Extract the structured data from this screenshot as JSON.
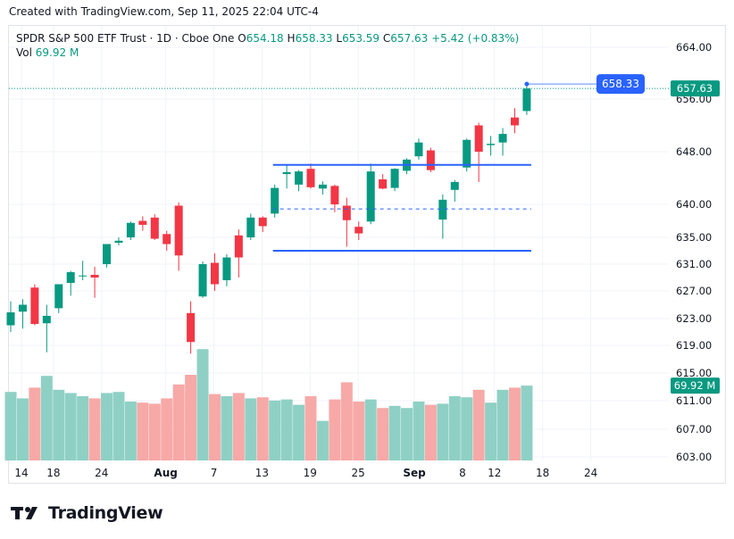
{
  "header": {
    "created_text": "Created with TradingView.com, Sep 11, 2025 22:04 UTC-4"
  },
  "legend": {
    "symbol": "SPDR S&P 500 ETF Trust · 1D · Cboe One",
    "o_label": "O",
    "o_value": "654.18",
    "h_label": "H",
    "h_value": "658.33",
    "l_label": "L",
    "l_value": "653.59",
    "c_label": "C",
    "c_value": "657.63",
    "change": "+5.42 (+0.83%)",
    "vol_label": "Vol",
    "vol_value": "69.92 M"
  },
  "badges": {
    "price_line_label": "658.33",
    "last_price_label": "657.63",
    "volume_label": "69.92 M"
  },
  "colors": {
    "up": "#089981",
    "down": "#f23645",
    "up_volume": "#8fd0c5",
    "down_volume": "#f7a9a7",
    "drawing_blue": "#2962ff"
  },
  "logo": {
    "text": "TradingView",
    "icon": "tradingview-logo-icon"
  },
  "chart_data": {
    "type": "candlestick",
    "y_ticks": [
      "664.00",
      "656.00",
      "648.00",
      "640.00",
      "635.00",
      "631.00",
      "627.00",
      "623.00",
      "619.00",
      "615.00",
      "611.00",
      "607.00",
      "603.00"
    ],
    "x_ticks": [
      {
        "label": "14",
        "day": 14
      },
      {
        "label": "18",
        "day": 18
      },
      {
        "label": "24",
        "day": 24
      },
      {
        "label": "Aug",
        "day": 32
      },
      {
        "label": "7",
        "day": 38
      },
      {
        "label": "13",
        "day": 44
      },
      {
        "label": "19",
        "day": 50
      },
      {
        "label": "25",
        "day": 56
      },
      {
        "label": "Sep",
        "day": 63
      },
      {
        "label": "8",
        "day": 69
      },
      {
        "label": "12",
        "day": 73
      },
      {
        "label": "18",
        "day": 79
      },
      {
        "label": "24",
        "day": 85
      }
    ],
    "candles": [
      {
        "o": 622.0,
        "h": 625.5,
        "l": 621.0,
        "c": 623.9,
        "v": 64
      },
      {
        "o": 624.0,
        "h": 625.8,
        "l": 621.5,
        "c": 625.0,
        "v": 58
      },
      {
        "o": 627.5,
        "h": 628.0,
        "l": 622.0,
        "c": 622.2,
        "v": 68
      },
      {
        "o": 622.3,
        "h": 625.0,
        "l": 618.0,
        "c": 623.4,
        "v": 79
      },
      {
        "o": 624.5,
        "h": 628.0,
        "l": 623.8,
        "c": 628.0,
        "v": 66
      },
      {
        "o": 628.2,
        "h": 630.0,
        "l": 626.3,
        "c": 629.8,
        "v": 63
      },
      {
        "o": 629.2,
        "h": 631.5,
        "l": 628.6,
        "c": 629.3,
        "v": 60
      },
      {
        "o": 629.4,
        "h": 630.6,
        "l": 626.0,
        "c": 629.0,
        "v": 58
      },
      {
        "o": 631.0,
        "h": 634.0,
        "l": 630.5,
        "c": 634.0,
        "v": 63
      },
      {
        "o": 634.2,
        "h": 635.0,
        "l": 633.8,
        "c": 634.5,
        "v": 64
      },
      {
        "o": 635.0,
        "h": 637.4,
        "l": 634.6,
        "c": 637.2,
        "v": 55
      },
      {
        "o": 637.5,
        "h": 638.2,
        "l": 636.0,
        "c": 636.9,
        "v": 54
      },
      {
        "o": 638.0,
        "h": 638.5,
        "l": 634.6,
        "c": 634.8,
        "v": 53
      },
      {
        "o": 635.5,
        "h": 636.0,
        "l": 633.0,
        "c": 634.0,
        "v": 58
      },
      {
        "o": 639.8,
        "h": 640.3,
        "l": 630.0,
        "c": 632.3,
        "v": 71
      },
      {
        "o": 623.8,
        "h": 625.5,
        "l": 617.8,
        "c": 619.5,
        "v": 80
      },
      {
        "o": 626.2,
        "h": 631.4,
        "l": 626.0,
        "c": 631.0,
        "v": 104
      },
      {
        "o": 631.2,
        "h": 632.6,
        "l": 627.0,
        "c": 628.0,
        "v": 62
      },
      {
        "o": 628.6,
        "h": 632.5,
        "l": 627.7,
        "c": 632.0,
        "v": 60
      },
      {
        "o": 635.3,
        "h": 636.2,
        "l": 629.0,
        "c": 632.0,
        "v": 63
      },
      {
        "o": 635.0,
        "h": 638.6,
        "l": 634.6,
        "c": 638.0,
        "v": 58
      },
      {
        "o": 638.0,
        "h": 638.2,
        "l": 635.8,
        "c": 636.7,
        "v": 59
      },
      {
        "o": 638.6,
        "h": 643.0,
        "l": 638.0,
        "c": 642.5,
        "v": 56
      },
      {
        "o": 644.6,
        "h": 645.9,
        "l": 642.4,
        "c": 644.9,
        "v": 57
      },
      {
        "o": 643.0,
        "h": 645.2,
        "l": 642.0,
        "c": 645.0,
        "v": 52
      },
      {
        "o": 645.4,
        "h": 646.2,
        "l": 642.4,
        "c": 642.6,
        "v": 60
      },
      {
        "o": 642.4,
        "h": 643.5,
        "l": 641.5,
        "c": 643.0,
        "v": 37
      },
      {
        "o": 642.8,
        "h": 643.0,
        "l": 638.8,
        "c": 640.0,
        "v": 57
      },
      {
        "o": 639.8,
        "h": 641.0,
        "l": 633.6,
        "c": 637.6,
        "v": 73
      },
      {
        "o": 636.6,
        "h": 637.4,
        "l": 634.6,
        "c": 635.6,
        "v": 55
      },
      {
        "o": 637.4,
        "h": 646.2,
        "l": 637.0,
        "c": 645.0,
        "v": 57
      },
      {
        "o": 643.8,
        "h": 644.6,
        "l": 642.3,
        "c": 642.4,
        "v": 49
      },
      {
        "o": 642.5,
        "h": 645.5,
        "l": 642.0,
        "c": 645.4,
        "v": 51
      },
      {
        "o": 645.1,
        "h": 647.0,
        "l": 644.6,
        "c": 646.8,
        "v": 49
      },
      {
        "o": 647.3,
        "h": 650.0,
        "l": 646.8,
        "c": 649.4,
        "v": 55
      },
      {
        "o": 648.2,
        "h": 648.6,
        "l": 644.9,
        "c": 645.2,
        "v": 52
      },
      {
        "o": 637.7,
        "h": 641.5,
        "l": 634.8,
        "c": 640.7,
        "v": 53
      },
      {
        "o": 642.2,
        "h": 643.7,
        "l": 640.4,
        "c": 643.4,
        "v": 60
      },
      {
        "o": 645.6,
        "h": 650.0,
        "l": 645.0,
        "c": 649.8,
        "v": 59
      },
      {
        "o": 652.0,
        "h": 652.4,
        "l": 643.4,
        "c": 648.0,
        "v": 66
      },
      {
        "o": 649.0,
        "h": 650.4,
        "l": 647.4,
        "c": 649.2,
        "v": 54
      },
      {
        "o": 649.4,
        "h": 651.6,
        "l": 647.4,
        "c": 650.7,
        "v": 66
      },
      {
        "o": 653.2,
        "h": 654.6,
        "l": 650.8,
        "c": 652.0,
        "v": 68
      },
      {
        "o": 654.18,
        "h": 658.33,
        "l": 653.59,
        "c": 657.63,
        "v": 69.92
      }
    ],
    "horizontal_lines": [
      {
        "price": 646.0,
        "from_index": 22,
        "to_index": 43,
        "style": "solid"
      },
      {
        "price": 639.3,
        "from_index": 22,
        "to_index": 43,
        "style": "dashed"
      },
      {
        "price": 633.0,
        "from_index": 22,
        "to_index": 43,
        "style": "solid"
      }
    ],
    "price_line": {
      "price": 658.33
    }
  }
}
